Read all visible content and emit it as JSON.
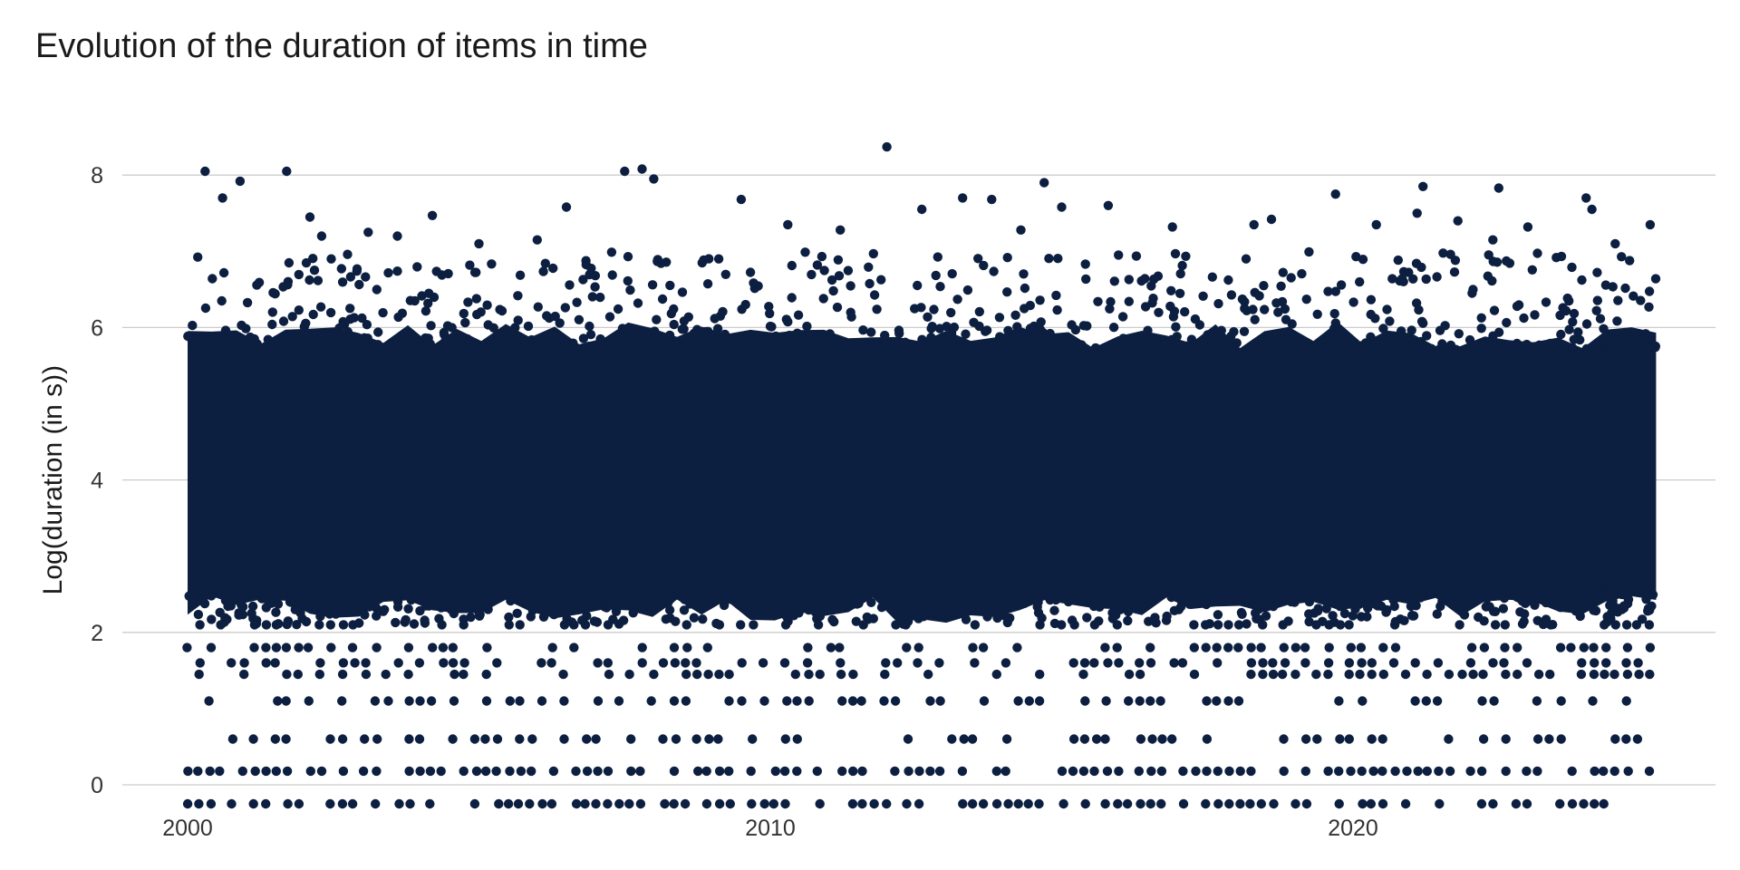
{
  "chart_data": {
    "type": "scatter",
    "title": "Evolution of the duration of items in time",
    "xlabel": "",
    "ylabel": "Log(duration (in s))",
    "x_ticks": [
      2000,
      2010,
      2020
    ],
    "y_ticks": [
      0,
      2,
      4,
      6,
      8
    ],
    "xlim": [
      1998.7,
      2026.6
    ],
    "ylim": [
      -0.25,
      8.5
    ],
    "grid": {
      "horizontal": true,
      "vertical": false
    },
    "legend": "none",
    "colors": {
      "points": "#0d1f40",
      "grid": "#cccccc"
    },
    "core_band": {
      "x_range": [
        2000.0,
        2025.2
      ],
      "y_range": [
        2.3,
        5.9
      ],
      "note": "dense overlap region"
    },
    "discrete_rows_y": [
      -0.25,
      0.18,
      0.6,
      1.1,
      1.45,
      1.6,
      1.8,
      2.1
    ],
    "outliers": [
      {
        "x": 2000.3,
        "y": 8.05
      },
      {
        "x": 2000.6,
        "y": 7.7
      },
      {
        "x": 2000.9,
        "y": 7.92
      },
      {
        "x": 2001.7,
        "y": 8.05
      },
      {
        "x": 2002.1,
        "y": 7.45
      },
      {
        "x": 2002.3,
        "y": 7.2
      },
      {
        "x": 2003.1,
        "y": 7.25
      },
      {
        "x": 2003.6,
        "y": 7.2
      },
      {
        "x": 2004.2,
        "y": 7.47
      },
      {
        "x": 2005.0,
        "y": 7.1
      },
      {
        "x": 2006.0,
        "y": 7.15
      },
      {
        "x": 2006.5,
        "y": 7.58
      },
      {
        "x": 2007.5,
        "y": 8.05
      },
      {
        "x": 2007.8,
        "y": 8.08
      },
      {
        "x": 2008.0,
        "y": 7.95
      },
      {
        "x": 2009.5,
        "y": 7.68
      },
      {
        "x": 2010.3,
        "y": 7.35
      },
      {
        "x": 2011.2,
        "y": 7.28
      },
      {
        "x": 2012.0,
        "y": 8.37
      },
      {
        "x": 2012.6,
        "y": 7.55
      },
      {
        "x": 2013.3,
        "y": 7.7
      },
      {
        "x": 2013.8,
        "y": 7.68
      },
      {
        "x": 2014.3,
        "y": 7.28
      },
      {
        "x": 2014.7,
        "y": 7.9
      },
      {
        "x": 2015.0,
        "y": 7.58
      },
      {
        "x": 2015.8,
        "y": 7.6
      },
      {
        "x": 2016.9,
        "y": 7.32
      },
      {
        "x": 2018.3,
        "y": 7.35
      },
      {
        "x": 2018.6,
        "y": 7.42
      },
      {
        "x": 2019.7,
        "y": 7.75
      },
      {
        "x": 2020.4,
        "y": 7.35
      },
      {
        "x": 2021.2,
        "y": 7.85
      },
      {
        "x": 2021.1,
        "y": 7.5
      },
      {
        "x": 2021.8,
        "y": 7.4
      },
      {
        "x": 2022.5,
        "y": 7.83
      },
      {
        "x": 2022.4,
        "y": 7.15
      },
      {
        "x": 2023.0,
        "y": 7.32
      },
      {
        "x": 2024.0,
        "y": 7.7
      },
      {
        "x": 2024.1,
        "y": 7.55
      },
      {
        "x": 2024.5,
        "y": 7.1
      },
      {
        "x": 2025.1,
        "y": 7.35
      }
    ]
  }
}
